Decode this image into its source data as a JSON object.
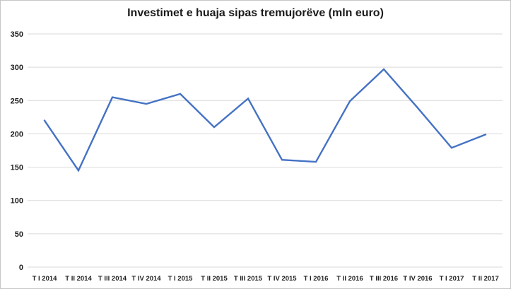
{
  "chart_data": {
    "type": "line",
    "title": "Investimet e huaja sipas tremujorëve (mln euro)",
    "categories": [
      "T I 2014",
      "T II 2014",
      "T III 2014",
      "T IV 2014",
      "T I 2015",
      "T II 2015",
      "T III 2015",
      "T IV 2015",
      "T I 2016",
      "T II 2016",
      "T III 2016",
      "T IV 2016",
      "T I 2017",
      "T II 2017"
    ],
    "values": [
      220,
      145,
      255,
      245,
      260,
      210,
      253,
      161,
      158,
      249,
      297,
      239,
      179,
      199
    ],
    "xlabel": "",
    "ylabel": "",
    "ylim": [
      0,
      350
    ],
    "ytick_step": 50,
    "grid": "horizontal",
    "legend_position": "none",
    "line_color": "#4472C4",
    "gridline_color": "#D9D9D9",
    "text_color": "#1f1f1f",
    "background_color": "#FFFFFF",
    "border_color": "#C8C6C4"
  }
}
